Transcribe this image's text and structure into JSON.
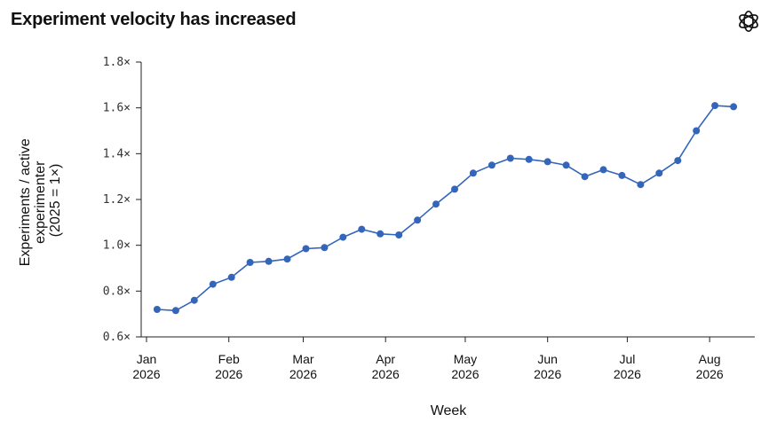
{
  "page": {
    "title": "Experiment velocity has increased",
    "logo_icon": "openai-logo-icon"
  },
  "chart_data": {
    "type": "line",
    "title": "Experiment velocity has increased",
    "xlabel": "Week",
    "ylabel_lines": [
      "Experiments / active",
      "experimenter",
      "(2025 = 1×)"
    ],
    "ylim": [
      0.6,
      1.8
    ],
    "yticks": [
      0.6,
      0.8,
      1.0,
      1.2,
      1.4,
      1.6,
      1.8
    ],
    "ytick_labels": [
      "0.6×",
      "0.8×",
      "1.0×",
      "1.2×",
      "1.4×",
      "1.6×",
      "1.8×"
    ],
    "xlim": [
      "2025-12-30",
      "2026-08-18"
    ],
    "xticks": [
      {
        "date": "2026-01-01",
        "label": [
          "Jan",
          "2026"
        ]
      },
      {
        "date": "2026-02-01",
        "label": [
          "Feb",
          "2026"
        ]
      },
      {
        "date": "2026-03-01",
        "label": [
          "Mar",
          "2026"
        ]
      },
      {
        "date": "2026-04-01",
        "label": [
          "Apr",
          "2026"
        ]
      },
      {
        "date": "2026-05-01",
        "label": [
          "May",
          "2026"
        ]
      },
      {
        "date": "2026-06-01",
        "label": [
          "Jun",
          "2026"
        ]
      },
      {
        "date": "2026-07-01",
        "label": [
          "Jul",
          "2026"
        ]
      },
      {
        "date": "2026-08-01",
        "label": [
          "Aug",
          "2026"
        ]
      }
    ],
    "grid": false,
    "legend": "none",
    "series": [
      {
        "color": "#3366bb",
        "x": [
          "2026-01-05",
          "2026-01-12",
          "2026-01-19",
          "2026-01-26",
          "2026-02-02",
          "2026-02-09",
          "2026-02-16",
          "2026-02-23",
          "2026-03-02",
          "2026-03-09",
          "2026-03-16",
          "2026-03-23",
          "2026-03-30",
          "2026-04-06",
          "2026-04-13",
          "2026-04-20",
          "2026-04-27",
          "2026-05-04",
          "2026-05-11",
          "2026-05-18",
          "2026-05-25",
          "2026-06-01",
          "2026-06-08",
          "2026-06-15",
          "2026-06-22",
          "2026-06-29",
          "2026-07-06",
          "2026-07-13",
          "2026-07-20",
          "2026-07-27",
          "2026-08-03",
          "2026-08-10"
        ],
        "values": [
          0.72,
          0.715,
          0.76,
          0.83,
          0.86,
          0.925,
          0.93,
          0.94,
          0.985,
          0.99,
          1.035,
          1.07,
          1.05,
          1.045,
          1.11,
          1.18,
          1.245,
          1.315,
          1.35,
          1.38,
          1.375,
          1.365,
          1.35,
          1.3,
          1.33,
          1.305,
          1.265,
          1.315,
          1.37,
          1.5,
          1.61,
          1.605
        ]
      }
    ]
  }
}
